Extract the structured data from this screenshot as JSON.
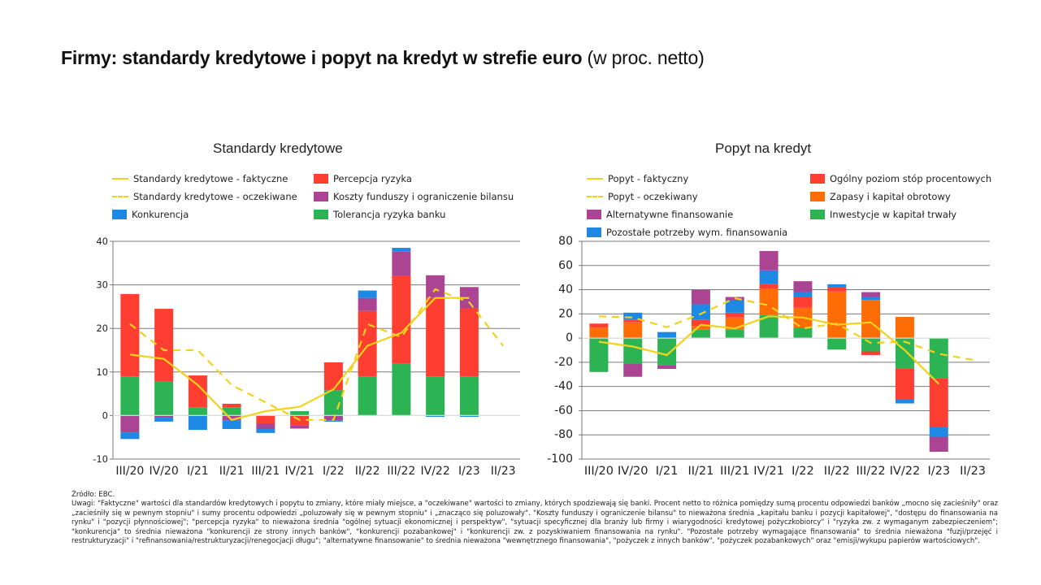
{
  "title": {
    "main": "Firmy: standardy kredytowe i popyt na kredyt w strefie euro",
    "unit": "(w proc. netto)"
  },
  "colors": {
    "red": "#fd3e31",
    "purple": "#ab4593",
    "blue": "#1e88e5",
    "green": "#2cb354",
    "orange": "#fe6c05",
    "yellow": "#f3d21c",
    "grid": "#7a7a7a"
  },
  "chart_data": [
    {
      "id": "standardy",
      "type": "bar",
      "stacked": true,
      "title": "Standardy kredytowe",
      "xlabel": "",
      "ylabel": "",
      "ylim": [
        -10,
        40
      ],
      "yticks": [
        -10,
        0,
        10,
        20,
        30,
        40
      ],
      "grid": true,
      "legend_position": "top",
      "categories": [
        "III/20",
        "IV/20",
        "I/21",
        "II/21",
        "III/21",
        "IV/21",
        "I/22",
        "II/22",
        "III/22",
        "IV/22",
        "I/23",
        "II/23"
      ],
      "series": [
        {
          "name": "Tolerancja ryzyka banku",
          "color": "green",
          "values": [
            9.0,
            7.9,
            1.9,
            1.9,
            0,
            1.0,
            5.8,
            9.0,
            12.0,
            9.0,
            9.0,
            null
          ]
        },
        {
          "name": "Percepcja ryzyka",
          "color": "red",
          "values": [
            18.9,
            16.6,
            7.3,
            0.8,
            -1.8,
            -2.2,
            6.4,
            15.0,
            20.0,
            18.0,
            15.7,
            null
          ]
        },
        {
          "name": "Koszty funduszy i ograniczenie bilansu",
          "color": "purple",
          "values": [
            -3.9,
            -0.5,
            0,
            -1.1,
            -1.3,
            -0.8,
            -1.1,
            3.0,
            5.6,
            5.2,
            4.8,
            null
          ]
        },
        {
          "name": "Konkurencja",
          "color": "blue",
          "values": [
            -1.5,
            -0.9,
            -3.3,
            -2.0,
            -0.9,
            0,
            -0.3,
            1.7,
            0.9,
            -0.3,
            -0.3,
            null
          ]
        }
      ],
      "lines": [
        {
          "name": "Standardy kredytowe - faktyczne",
          "style": "solid",
          "values": [
            14,
            13,
            7,
            -1,
            1,
            2,
            6,
            16,
            19,
            27,
            27,
            null
          ]
        },
        {
          "name": "Standardy kredytowe - oczekiwane",
          "style": "dashed",
          "values": [
            21,
            15,
            15,
            7,
            3,
            -1,
            -1,
            21,
            18,
            29,
            26,
            16
          ]
        }
      ],
      "legend": [
        {
          "label": "Standardy kredytowe - faktyczne",
          "kind": "line"
        },
        {
          "label": "Percepcja ryzyka",
          "kind": "bar",
          "color": "red"
        },
        {
          "label": "Standardy kredytowe - oczekiwane",
          "kind": "dashed"
        },
        {
          "label": "Koszty funduszy i ograniczenie bilansu",
          "kind": "bar",
          "color": "purple"
        },
        {
          "label": "Konkurencja",
          "kind": "bar",
          "color": "blue"
        },
        {
          "label": "Tolerancja ryzyka banku",
          "kind": "bar",
          "color": "green"
        }
      ]
    },
    {
      "id": "popyt",
      "type": "bar",
      "stacked": true,
      "title": "Popyt na kredyt",
      "xlabel": "",
      "ylabel": "",
      "ylim": [
        -100,
        80
      ],
      "yticks": [
        -100,
        -80,
        -60,
        -40,
        -20,
        0,
        20,
        40,
        60,
        80
      ],
      "grid": true,
      "legend_position": "top",
      "categories": [
        "III/20",
        "IV/20",
        "I/21",
        "II/21",
        "III/21",
        "IV/21",
        "I/22",
        "II/22",
        "III/22",
        "IV/22",
        "I/23",
        "II/23"
      ],
      "series": [
        {
          "name": "Inwestycje w kapitał trwały",
          "color": "green",
          "values": [
            -28,
            -21,
            -22.5,
            7,
            7,
            19,
            8.5,
            -9.5,
            -11,
            -25,
            -33,
            null
          ]
        },
        {
          "name": "Zapasy i kapitał obrotowy",
          "color": "orange",
          "values": [
            8.7,
            13,
            0,
            3,
            10,
            21.5,
            16.5,
            38.5,
            31.5,
            17.5,
            0,
            null
          ]
        },
        {
          "name": "Ogólny poziom stóp procentowych",
          "color": "red",
          "values": [
            3.3,
            2,
            0,
            5,
            4,
            4,
            9,
            3.5,
            -3,
            -26,
            -40.5,
            null
          ]
        },
        {
          "name": "Pozostałe potrzeby wym. finansowania",
          "color": "blue",
          "values": [
            0,
            6,
            5,
            13,
            10,
            11.5,
            4,
            2.5,
            2.5,
            -3,
            -8,
            null
          ]
        },
        {
          "name": "Alternatywne finansowanie",
          "color": "purple",
          "values": [
            0,
            -11,
            -3,
            12,
            3,
            16,
            9,
            0,
            4,
            0,
            -12.5,
            null
          ]
        }
      ],
      "lines": [
        {
          "name": "Popyt - faktyczny",
          "style": "solid",
          "values": [
            -3,
            -7,
            -14,
            11,
            8,
            18,
            17,
            11,
            13,
            -10,
            -38,
            null
          ]
        },
        {
          "name": "Popyt - oczekiwany",
          "style": "dashed",
          "values": [
            18,
            17,
            9,
            20,
            33,
            27,
            8,
            12,
            -4,
            -3,
            -13,
            -18
          ]
        }
      ],
      "legend": [
        {
          "label": "Popyt - faktyczny",
          "kind": "line"
        },
        {
          "label": "Ogólny poziom stóp procentowych",
          "kind": "bar",
          "color": "red"
        },
        {
          "label": "Popyt - oczekiwany",
          "kind": "dashed"
        },
        {
          "label": "Zapasy i kapitał obrotowy",
          "kind": "bar",
          "color": "orange"
        },
        {
          "label": "Alternatywne finansowanie",
          "kind": "bar",
          "color": "purple"
        },
        {
          "label": "Inwestycje w kapitał trwały",
          "kind": "bar",
          "color": "green"
        },
        {
          "label": "Pozostałe potrzeby wym. finansowania",
          "kind": "bar",
          "color": "blue"
        }
      ]
    }
  ],
  "notes": {
    "source": "Źródło: EBC.",
    "remarks": "Uwagi: \"Faktyczne\" wartości dla standardów kredytowych i popytu to zmiany, które miały miejsce, a \"oczekiwane\" wartości to zmiany, których spodziewają się banki. Procent netto to różnica pomiędzy sumą procentu odpowiedzi banków „mocno się zacieśniły\" oraz „zacieśniły się w pewnym stopniu\" i sumy procentu odpowiedzi „poluzowały się w pewnym stopniu\" i „znacząco się poluzowały\".  \"Koszty funduszy i ograniczenie bilansu\" to nieważona średnia „kapitału banku i pozycji kapitałowej\", \"dostępu do finansowania na rynku\" i \"pozycji płynnościowej\"; \"percepcja ryzyka\" to nieważona średnia \"ogólnej sytuacji ekonomicznej i perspektyw\", \"sytuacji specyficznej dla branży lub firmy i wiarygodności kredytowej pożyczkobiorcy\" i \"ryzyka zw. z wymaganym zabezpieczeniem\"; \"konkurencja\" to średnia nieważona \"konkurencji ze strony innych banków\", \"konkurencji pozabankowej\" i \"konkurencji zw. z pozyskiwaniem finansowania na rynku\". \"Pozostałe potrzeby wymagające finansowania\" to średnia nieważona  \"fuzji/przejęć i restrukturyzacji\" i \"refinansowania/restrukturyzacji/renegocjacji długu\"; \"alternatywne finansowanie\" to średnia nieważona \"wewnętrznego finansowania\", \"pożyczek z innych banków\", \"pożyczek pozabankowych\" oraz \"emisji/wykupu papierów wartościowych\"."
  }
}
